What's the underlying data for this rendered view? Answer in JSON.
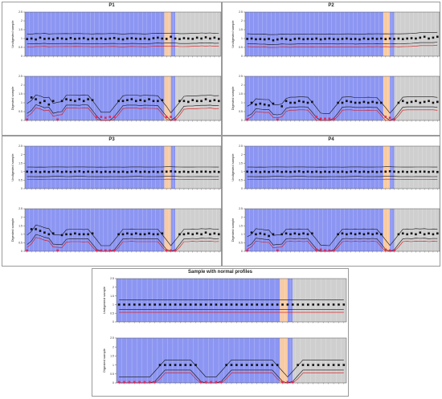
{
  "figure": {
    "panels": [
      {
        "id": "p1",
        "title": "P1"
      },
      {
        "id": "p2",
        "title": "P2"
      },
      {
        "id": "p3",
        "title": "P3"
      },
      {
        "id": "p4",
        "title": "P4"
      },
      {
        "id": "p5",
        "title": "Sample with normal profiles"
      }
    ]
  },
  "chart_data": [
    {
      "panel": "P1",
      "subplots": [
        {
          "type": "scatter",
          "ylabel": "Undigested sample",
          "ylim": [
            0,
            2.5
          ],
          "yticks": [
            "0",
            "0.5",
            "1",
            "1.5",
            "2",
            "2.5"
          ],
          "points": [
            0.97,
            1.0,
            0.95,
            1.05,
            0.98,
            1.0,
            0.96,
            1.02,
            1.0,
            0.97,
            1.03,
            0.98,
            1.0,
            1.02,
            0.96,
            1.0,
            0.98,
            1.01,
            0.97,
            1.0,
            1.03,
            0.98,
            0.95,
            1.0,
            1.02,
            0.99,
            0.98,
            1.0,
            0.96,
            1.02,
            1.05,
            1.0,
            0.98,
            1.1,
            1.0,
            0.97,
            1.02,
            1.0,
            0.98,
            1.05,
            1.0,
            1.07,
            1.0,
            1.05,
            0.98
          ]
        },
        {
          "type": "scatter",
          "ylabel": "Digested sample",
          "ylim": [
            0,
            2.5
          ],
          "yticks": [
            "0",
            "0.5",
            "1",
            "1.5",
            "2",
            "2.5"
          ],
          "points": [
            0.05,
            1.3,
            1.2,
            1.0,
            1.1,
            0.9,
            1.1,
            0.05,
            1.1,
            1.2,
            1.15,
            1.1,
            1.2,
            1.1,
            1.2,
            1.15,
            0.2,
            0.2,
            0.15,
            0.2,
            0.2,
            1.1,
            1.1,
            1.15,
            1.2,
            1.1,
            1.15,
            1.1,
            1.2,
            1.1,
            1.1,
            1.15,
            0.2,
            0.2,
            0.05,
            1.1,
            1.1,
            1.05,
            1.15,
            1.1,
            1.1,
            1.2,
            1.1,
            1.15,
            1.1
          ]
        }
      ]
    },
    {
      "panel": "P2",
      "subplots": [
        {
          "type": "scatter",
          "ylabel": "Undigested sample",
          "ylim": [
            0,
            2.5
          ],
          "yticks": [
            "0",
            "0.5",
            "1",
            "1.5",
            "2",
            "2.5"
          ],
          "points": [
            0.98,
            1.0,
            0.96,
            0.97,
            0.95,
            0.98,
            0.9,
            0.95,
            1.0,
            0.97,
            0.92,
            0.98,
            1.0,
            0.96,
            0.98,
            0.97,
            1.0,
            0.95,
            0.98,
            1.0,
            0.97,
            0.96,
            0.98,
            1.0,
            0.97,
            0.98,
            0.95,
            1.0,
            0.97,
            1.0,
            0.98,
            1.0,
            0.97,
            1.0,
            0.98,
            1.0,
            0.97,
            1.0,
            1.02,
            1.0,
            1.05,
            1.1,
            1.0,
            1.05,
            1.1
          ]
        },
        {
          "type": "scatter",
          "ylabel": "Digested sample",
          "ylim": [
            0,
            2.5
          ],
          "yticks": [
            "0",
            "0.5",
            "1",
            "1.5",
            "2",
            "2.5"
          ],
          "points": [
            0.05,
            1.0,
            0.9,
            0.95,
            0.9,
            0.85,
            0.95,
            0.05,
            0.8,
            1.1,
            1.0,
            1.0,
            1.1,
            1.05,
            1.0,
            1.05,
            0.2,
            0.1,
            0.1,
            0.1,
            0.1,
            1.0,
            1.0,
            1.1,
            1.05,
            1.0,
            1.0,
            1.05,
            1.0,
            1.05,
            1.0,
            1.0,
            0.2,
            0.15,
            0.05,
            1.0,
            1.1,
            1.0,
            1.05,
            1.1,
            1.0,
            1.05,
            1.1,
            1.0,
            1.05
          ]
        }
      ]
    },
    {
      "panel": "P3",
      "subplots": [
        {
          "type": "scatter",
          "ylabel": "Undigested sample",
          "ylim": [
            0,
            2.5
          ],
          "yticks": [
            "0",
            "0.5",
            "1",
            "1.5",
            "2",
            "2.5"
          ],
          "points": [
            1.0,
            0.98,
            1.0,
            0.97,
            1.0,
            0.98,
            1.0,
            1.02,
            0.98,
            1.0,
            0.98,
            1.0,
            1.02,
            0.98,
            1.0,
            0.98,
            1.0,
            0.97,
            1.0,
            0.98,
            1.0,
            0.98,
            1.0,
            0.97,
            1.0,
            1.02,
            0.98,
            1.0,
            0.98,
            1.0,
            0.98,
            1.0,
            1.0,
            1.02,
            1.0,
            0.98,
            1.0,
            0.98,
            1.0,
            0.98,
            1.0,
            1.0,
            0.98,
            1.0,
            0.98
          ]
        },
        {
          "type": "scatter",
          "ylabel": "Digested sample",
          "ylim": [
            0,
            2.5
          ],
          "yticks": [
            "0",
            "0.5",
            "1",
            "1.5",
            "2",
            "2.5"
          ],
          "points": [
            0.05,
            1.3,
            1.3,
            1.2,
            1.1,
            1.0,
            1.05,
            0.05,
            0.95,
            1.0,
            1.0,
            1.05,
            1.0,
            1.0,
            1.0,
            1.05,
            0.05,
            0.05,
            0.05,
            0.05,
            0.05,
            1.0,
            1.0,
            1.05,
            1.0,
            1.05,
            1.0,
            1.0,
            1.05,
            1.0,
            1.0,
            1.05,
            0.05,
            0.05,
            0.05,
            1.0,
            1.0,
            1.05,
            1.0,
            1.05,
            1.0,
            1.1,
            1.0,
            1.05,
            1.0
          ]
        }
      ]
    },
    {
      "panel": "P4",
      "subplots": [
        {
          "type": "scatter",
          "ylabel": "Undigested sample",
          "ylim": [
            0,
            2.5
          ],
          "yticks": [
            "0",
            "0.5",
            "1",
            "1.5",
            "2",
            "2.5"
          ],
          "points": [
            1.0,
            0.98,
            1.0,
            0.97,
            1.0,
            0.98,
            1.0,
            1.02,
            0.98,
            1.0,
            0.98,
            1.0,
            1.02,
            0.98,
            1.0,
            0.98,
            1.0,
            0.97,
            1.0,
            0.98,
            1.0,
            0.98,
            1.0,
            0.97,
            1.0,
            1.02,
            0.98,
            1.0,
            0.98,
            1.0,
            0.98,
            1.0,
            1.0,
            1.02,
            1.0,
            0.98,
            1.0,
            0.98,
            1.0,
            0.98,
            1.0,
            1.0,
            0.98,
            1.0,
            0.98
          ]
        },
        {
          "type": "scatter",
          "ylabel": "Digested sample",
          "ylim": [
            0,
            2.5
          ],
          "yticks": [
            "0",
            "0.5",
            "1",
            "1.5",
            "2",
            "2.5"
          ],
          "points": [
            0.05,
            1.1,
            1.0,
            1.05,
            1.0,
            0.9,
            1.0,
            0.05,
            1.0,
            1.05,
            1.0,
            1.05,
            1.0,
            1.05,
            1.0,
            1.05,
            0.1,
            0.1,
            0.05,
            0.05,
            0.05,
            1.0,
            1.05,
            1.0,
            1.05,
            1.0,
            1.05,
            1.0,
            1.05,
            1.0,
            1.05,
            1.0,
            0.1,
            0.05,
            0.05,
            1.0,
            1.05,
            1.0,
            1.05,
            1.0,
            1.1,
            1.0,
            1.05,
            1.0,
            1.05
          ]
        }
      ]
    },
    {
      "panel": "Sample with normal profiles",
      "subplots": [
        {
          "type": "scatter",
          "ylabel": "Undigested sample",
          "ylim": [
            0,
            2.5
          ],
          "yticks": [
            "0",
            "0.5",
            "1",
            "1.5",
            "2",
            "2.5"
          ],
          "points": [
            1.0,
            1.0,
            1.0,
            1.0,
            1.0,
            1.0,
            1.0,
            1.0,
            1.0,
            1.0,
            1.0,
            1.0,
            1.0,
            1.0,
            1.0,
            1.0,
            1.0,
            1.0,
            1.0,
            1.0,
            1.0,
            1.0,
            1.0,
            1.0,
            1.0,
            1.0,
            1.0,
            1.0,
            1.0,
            1.0,
            1.0,
            1.0,
            1.0,
            1.0,
            1.0,
            1.0,
            1.0,
            1.0,
            1.0,
            1.0,
            1.0,
            1.0,
            1.0,
            1.0,
            1.0
          ]
        },
        {
          "type": "scatter",
          "ylabel": "Digested sample",
          "ylim": [
            0,
            2.5
          ],
          "yticks": [
            "0",
            "0.5",
            "1",
            "1.5",
            "2",
            "2.5"
          ],
          "points": [
            0.05,
            0.05,
            0.05,
            0.05,
            0.05,
            0.05,
            0.05,
            0.05,
            1.0,
            1.0,
            1.0,
            1.0,
            1.0,
            1.0,
            1.0,
            1.0,
            0.05,
            0.05,
            0.05,
            0.05,
            0.05,
            1.0,
            1.0,
            1.0,
            1.0,
            1.0,
            1.0,
            1.0,
            1.0,
            1.0,
            1.0,
            1.0,
            0.05,
            0.05,
            0.05,
            1.0,
            1.0,
            1.0,
            1.0,
            1.0,
            1.0,
            1.0,
            1.0,
            1.0,
            1.0
          ]
        }
      ]
    }
  ]
}
